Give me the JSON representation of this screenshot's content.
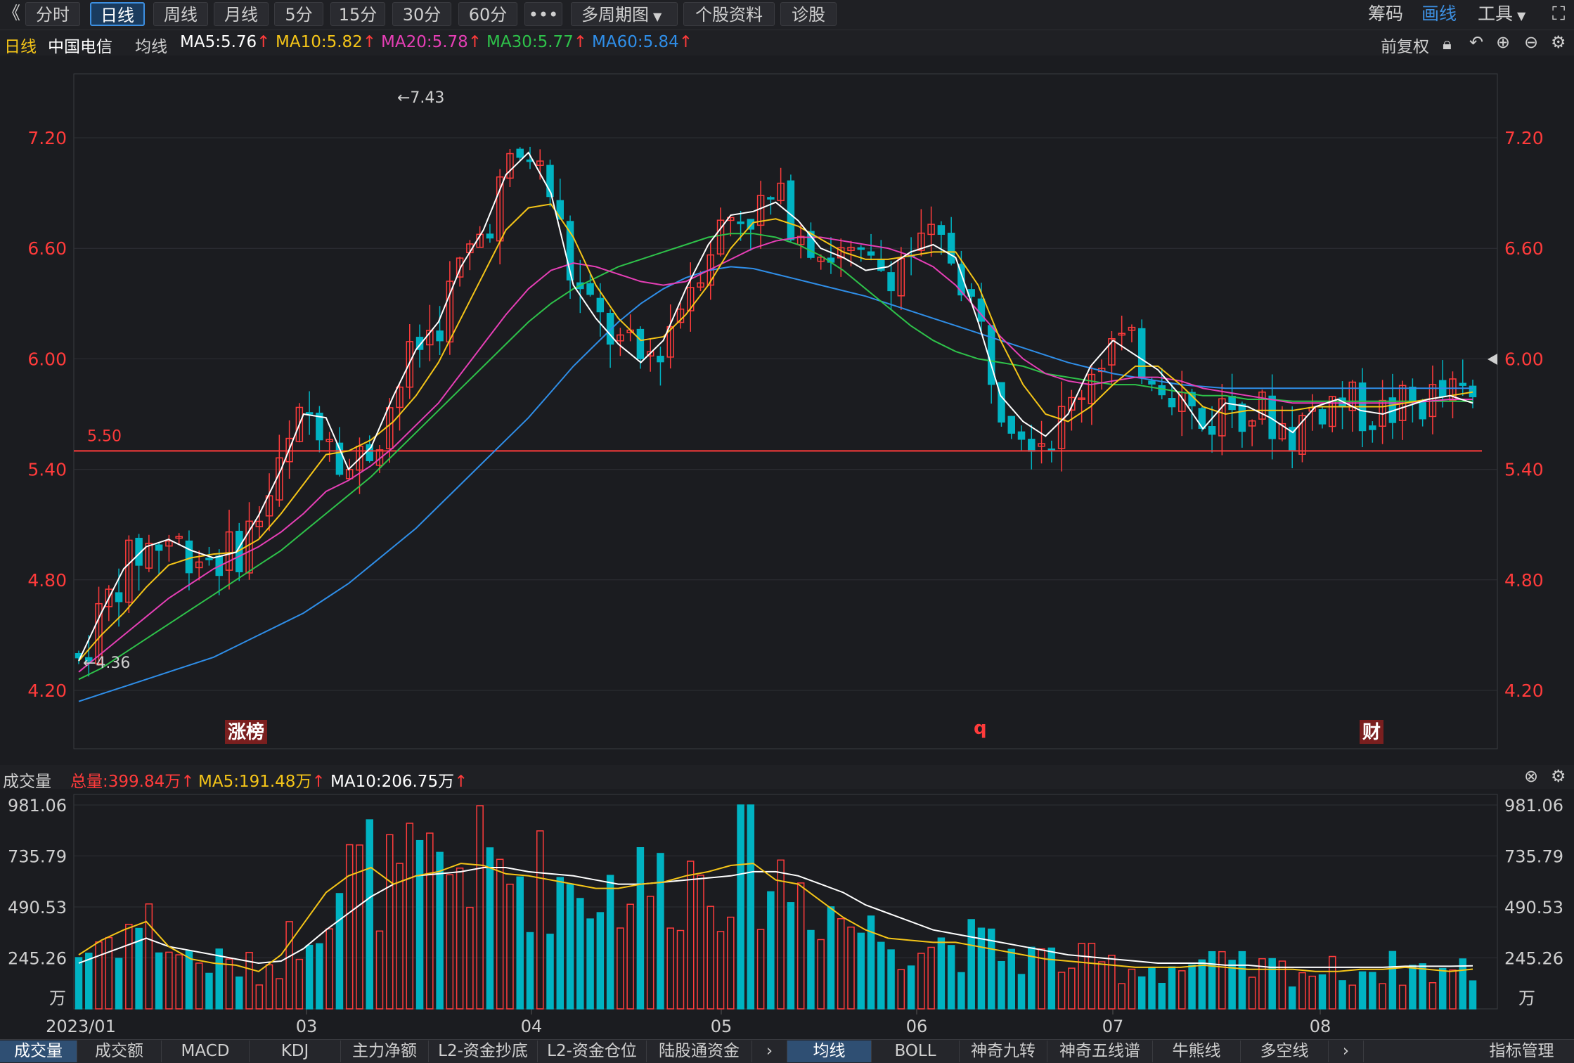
{
  "toolbar": {
    "back": "《",
    "periods": [
      "分时",
      "日线",
      "周线",
      "月线",
      "5分",
      "15分",
      "30分",
      "60分"
    ],
    "active_period": "日线",
    "more": "•••",
    "multi_period": "多周期图",
    "stock_info": "个股资料",
    "diagnose": "诊股",
    "chips": "筹码",
    "draw": "画线",
    "tools": "工具"
  },
  "main_header": {
    "period_label": "日线",
    "stock_name": "中国电信",
    "ma_label": "均线",
    "ma5": "MA5:5.76",
    "ma10": "MA10:5.82",
    "ma20": "MA20:5.78",
    "ma30": "MA30:5.77",
    "ma60": "MA60:5.84",
    "adjust": "前复权"
  },
  "volume_header": {
    "label": "成交量",
    "total": "总量:399.84万",
    "ma5": "MA5:191.48万",
    "ma10": "MA10:206.75万"
  },
  "colors": {
    "up": "#ff3b3b",
    "down": "#00b3c2",
    "ma5": "#ffffff",
    "ma10": "#f5c518",
    "ma20": "#e63fb6",
    "ma30": "#2ec24a",
    "ma60": "#2f8ee8",
    "active": "#3d8fe0"
  },
  "chart_data": {
    "type": "candlestick",
    "price_ticks": [
      "7.20",
      "6.60",
      "6.00",
      "5.40",
      "4.80",
      "4.20"
    ],
    "volume_ticks": [
      "981.06",
      "735.79",
      "490.53",
      "245.26"
    ],
    "volume_unit": "万",
    "x_labels": [
      "2023/01",
      "03",
      "04",
      "05",
      "06",
      "07",
      "08"
    ],
    "high_mark": "7.43",
    "low_mark": "4.36",
    "hline_label": "5.50",
    "hline_value": 5.5,
    "badges": [
      "涨榜",
      "q",
      "财"
    ],
    "ylim": [
      4.0,
      7.6
    ],
    "vol_max": 981.06,
    "ma5": [
      4.36,
      4.62,
      4.86,
      4.98,
      5.02,
      4.96,
      4.92,
      4.95,
      5.15,
      5.4,
      5.7,
      5.68,
      5.4,
      5.52,
      5.8,
      6.05,
      6.2,
      6.5,
      6.7,
      7.0,
      7.12,
      6.9,
      6.4,
      6.22,
      6.08,
      5.98,
      6.1,
      6.38,
      6.62,
      6.78,
      6.8,
      6.85,
      6.75,
      6.6,
      6.55,
      6.48,
      6.5,
      6.58,
      6.62,
      6.55,
      6.2,
      5.8,
      5.66,
      5.58,
      5.7,
      5.96,
      6.1,
      6.02,
      5.94,
      5.8,
      5.62,
      5.76,
      5.74,
      5.68,
      5.6,
      5.74,
      5.78,
      5.72,
      5.7,
      5.74,
      5.78,
      5.8,
      5.76
    ],
    "ma10": [
      4.36,
      4.5,
      4.62,
      4.76,
      4.88,
      4.92,
      4.94,
      4.95,
      5.02,
      5.16,
      5.32,
      5.48,
      5.5,
      5.56,
      5.66,
      5.8,
      5.98,
      6.22,
      6.46,
      6.7,
      6.82,
      6.84,
      6.66,
      6.4,
      6.22,
      6.1,
      6.12,
      6.24,
      6.4,
      6.6,
      6.74,
      6.76,
      6.72,
      6.65,
      6.58,
      6.54,
      6.54,
      6.56,
      6.58,
      6.58,
      6.4,
      6.1,
      5.86,
      5.7,
      5.66,
      5.74,
      5.86,
      5.96,
      5.96,
      5.86,
      5.74,
      5.7,
      5.72,
      5.72,
      5.72,
      5.74,
      5.74,
      5.74,
      5.74,
      5.76,
      5.78,
      5.8,
      5.82
    ],
    "ma20": [
      4.3,
      4.4,
      4.5,
      4.6,
      4.7,
      4.78,
      4.86,
      4.92,
      4.98,
      5.06,
      5.16,
      5.28,
      5.34,
      5.42,
      5.52,
      5.64,
      5.76,
      5.92,
      6.08,
      6.24,
      6.38,
      6.48,
      6.52,
      6.5,
      6.46,
      6.42,
      6.4,
      6.42,
      6.48,
      6.54,
      6.6,
      6.64,
      6.66,
      6.66,
      6.64,
      6.62,
      6.6,
      6.56,
      6.5,
      6.4,
      6.26,
      6.12,
      6.0,
      5.92,
      5.88,
      5.86,
      5.88,
      5.9,
      5.9,
      5.88,
      5.84,
      5.82,
      5.8,
      5.78,
      5.76,
      5.76,
      5.76,
      5.76,
      5.76,
      5.76,
      5.77,
      5.78,
      5.78
    ],
    "ma30": [
      4.26,
      4.32,
      4.4,
      4.48,
      4.56,
      4.64,
      4.72,
      4.8,
      4.88,
      4.96,
      5.06,
      5.16,
      5.26,
      5.36,
      5.48,
      5.6,
      5.72,
      5.84,
      5.96,
      6.08,
      6.2,
      6.3,
      6.38,
      6.44,
      6.5,
      6.54,
      6.58,
      6.62,
      6.66,
      6.68,
      6.68,
      6.66,
      6.62,
      6.56,
      6.48,
      6.38,
      6.28,
      6.18,
      6.1,
      6.04,
      6.0,
      5.98,
      5.96,
      5.92,
      5.9,
      5.88,
      5.86,
      5.86,
      5.84,
      5.82,
      5.8,
      5.8,
      5.78,
      5.78,
      5.77,
      5.77,
      5.77,
      5.77,
      5.77,
      5.77,
      5.77,
      5.77,
      5.77
    ],
    "ma60": [
      4.14,
      4.18,
      4.22,
      4.26,
      4.3,
      4.34,
      4.38,
      4.44,
      4.5,
      4.56,
      4.62,
      4.7,
      4.78,
      4.88,
      4.98,
      5.08,
      5.2,
      5.32,
      5.44,
      5.56,
      5.68,
      5.82,
      5.96,
      6.08,
      6.2,
      6.3,
      6.38,
      6.44,
      6.48,
      6.5,
      6.49,
      6.46,
      6.43,
      6.4,
      6.37,
      6.34,
      6.3,
      6.26,
      6.22,
      6.18,
      6.14,
      6.1,
      6.06,
      6.02,
      5.98,
      5.95,
      5.92,
      5.9,
      5.88,
      5.86,
      5.85,
      5.84,
      5.84,
      5.84,
      5.84,
      5.84,
      5.84,
      5.84,
      5.84,
      5.84,
      5.84,
      5.84,
      5.84
    ],
    "vol_ma5": [
      260,
      330,
      380,
      420,
      300,
      240,
      220,
      210,
      180,
      260,
      410,
      560,
      640,
      680,
      600,
      640,
      660,
      700,
      690,
      650,
      640,
      620,
      600,
      580,
      580,
      600,
      610,
      640,
      660,
      690,
      700,
      620,
      600,
      520,
      440,
      380,
      340,
      330,
      320,
      320,
      300,
      280,
      260,
      240,
      230,
      220,
      210,
      200,
      200,
      200,
      210,
      200,
      190,
      190,
      190,
      180,
      180,
      190,
      190,
      200,
      190,
      180,
      191
    ],
    "vol_ma10": [
      220,
      260,
      300,
      340,
      300,
      280,
      260,
      240,
      220,
      230,
      290,
      380,
      460,
      540,
      600,
      640,
      650,
      660,
      680,
      680,
      660,
      650,
      640,
      620,
      600,
      600,
      610,
      620,
      630,
      640,
      660,
      660,
      640,
      600,
      560,
      500,
      460,
      420,
      380,
      360,
      340,
      320,
      300,
      280,
      260,
      250,
      240,
      230,
      220,
      220,
      220,
      210,
      210,
      200,
      200,
      200,
      200,
      200,
      200,
      205,
      205,
      205,
      207
    ]
  }
}
